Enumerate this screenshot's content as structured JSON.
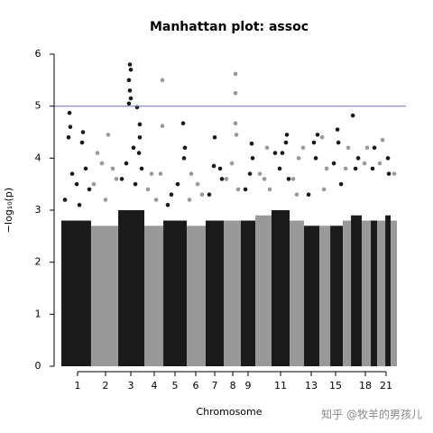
{
  "chart_data": {
    "type": "scatter",
    "title": "Manhattan plot: assoc",
    "x_label": "Chromosome",
    "y_label": "−log₁₀(p)",
    "watermark": "知乎 @牧羊的男孩儿",
    "threshold": 5,
    "threshold_color": "#7f7fd0",
    "xlim": [
      0,
      2879
    ],
    "ylim": [
      0,
      6
    ],
    "yticks": [
      0,
      1,
      2,
      3,
      4,
      5,
      6
    ],
    "xticks": [
      {
        "value": 139,
        "label": "1"
      },
      {
        "value": 379,
        "label": "2"
      },
      {
        "value": 596,
        "label": "3"
      },
      {
        "value": 797,
        "label": "4"
      },
      {
        "value": 975,
        "label": "5"
      },
      {
        "value": 1153,
        "label": "6"
      },
      {
        "value": 1316,
        "label": "7"
      },
      {
        "value": 1471,
        "label": "8"
      },
      {
        "value": 1602,
        "label": "9"
      },
      {
        "value": 1881,
        "label": "11"
      },
      {
        "value": 2144,
        "label": "13"
      },
      {
        "value": 2353,
        "label": "15"
      },
      {
        "value": 2608,
        "label": "18"
      },
      {
        "value": 2786,
        "label": "21"
      }
    ],
    "series": [
      {
        "color": "#1a1a1a",
        "range": [
          0,
          255
        ],
        "bulk": 2.8,
        "x": [
          70,
          77,
          62,
          186,
          178,
          93,
          132,
          209,
          31,
          240,
          155
        ],
        "values": [
          4.87,
          4.6,
          4.4,
          4.5,
          4.3,
          3.7,
          3.5,
          3.8,
          3.2,
          3.4,
          3.1
        ]
      },
      {
        "color": "#999999",
        "range": [
          255,
          488
        ],
        "bulk": 2.7,
        "x": [
          402,
          310,
          348,
          441,
          279,
          472,
          379
        ],
        "values": [
          4.45,
          4.1,
          3.9,
          3.8,
          3.5,
          3.6,
          3.2
        ]
      },
      {
        "color": "#1a1a1a",
        "range": [
          488,
          712
        ],
        "bulk": 3.0,
        "x": [
          588,
          596,
          580,
          588,
          596,
          580,
          650,
          673,
          673,
          619,
          666,
          557,
          689,
          519,
          635
        ],
        "values": [
          5.8,
          5.7,
          5.5,
          5.3,
          5.15,
          5.05,
          4.98,
          4.65,
          4.4,
          4.2,
          4.1,
          3.9,
          3.8,
          3.6,
          3.5
        ]
      },
      {
        "color": "#999999",
        "range": [
          712,
          875
        ],
        "bulk": 2.7,
        "x": [
          867,
          867,
          774,
          851,
          743,
          813
        ],
        "values": [
          5.5,
          4.62,
          3.7,
          3.7,
          3.4,
          3.2
        ]
      },
      {
        "color": "#1a1a1a",
        "range": [
          875,
          1076
        ],
        "bulk": 2.8,
        "x": [
          1045,
          1060,
          1053,
          944,
          998,
          913
        ],
        "values": [
          4.67,
          4.2,
          4.0,
          3.3,
          3.5,
          3.1
        ]
      },
      {
        "color": "#999999",
        "range": [
          1076,
          1238
        ],
        "bulk": 2.7,
        "x": [
          1115,
          1169,
          1207,
          1099
        ],
        "values": [
          3.7,
          3.5,
          3.3,
          3.2
        ]
      },
      {
        "color": "#1a1a1a",
        "range": [
          1238,
          1393
        ],
        "bulk": 2.8,
        "x": [
          1316,
          1308,
          1362,
          1378,
          1269
        ],
        "values": [
          4.4,
          3.85,
          3.8,
          3.6,
          3.3
        ]
      },
      {
        "color": "#999999",
        "range": [
          1393,
          1540
        ],
        "bulk": 2.8,
        "x": [
          1494,
          1494,
          1494,
          1502,
          1463,
          1416,
          1517
        ],
        "values": [
          5.62,
          5.25,
          4.67,
          4.45,
          3.9,
          3.6,
          3.4
        ]
      },
      {
        "color": "#1a1a1a",
        "range": [
          1540,
          1664
        ],
        "bulk": 2.8,
        "x": [
          1633,
          1641,
          1618,
          1579
        ],
        "values": [
          4.28,
          4.0,
          3.7,
          3.4
        ]
      },
      {
        "color": "#999999",
        "range": [
          1664,
          1803
        ],
        "bulk": 2.9,
        "x": [
          1765,
          1703,
          1742,
          1788
        ],
        "values": [
          4.2,
          3.7,
          3.6,
          3.4
        ]
      },
      {
        "color": "#1a1a1a",
        "range": [
          1803,
          1958
        ],
        "bulk": 3.0,
        "x": [
          1935,
          1927,
          1896,
          1834,
          1873,
          1950
        ],
        "values": [
          4.45,
          4.3,
          4.1,
          4.1,
          3.8,
          3.6
        ]
      },
      {
        "color": "#999999",
        "range": [
          1958,
          2082
        ],
        "bulk": 2.8,
        "x": [
          2074,
          2036,
          1989,
          2020
        ],
        "values": [
          4.2,
          4.0,
          3.6,
          3.3
        ]
      },
      {
        "color": "#1a1a1a",
        "range": [
          2082,
          2214
        ],
        "bulk": 2.7,
        "x": [
          2198,
          2167,
          2183,
          2121
        ],
        "values": [
          4.45,
          4.3,
          4.0,
          3.3
        ]
      },
      {
        "color": "#999999",
        "range": [
          2214,
          2307
        ],
        "bulk": 2.7,
        "x": [
          2237,
          2276,
          2253
        ],
        "values": [
          4.4,
          3.8,
          3.4
        ]
      },
      {
        "color": "#1a1a1a",
        "range": [
          2307,
          2415
        ],
        "bulk": 2.7,
        "x": [
          2369,
          2377,
          2338,
          2400
        ],
        "values": [
          4.55,
          4.3,
          3.9,
          3.5
        ]
      },
      {
        "color": "#999999",
        "range": [
          2415,
          2485
        ],
        "bulk": 2.8,
        "x": [
          2462,
          2439
        ],
        "values": [
          4.2,
          3.8
        ]
      },
      {
        "color": "#1a1a1a",
        "range": [
          2485,
          2577
        ],
        "bulk": 2.9,
        "x": [
          2501,
          2547,
          2524
        ],
        "values": [
          4.82,
          4.0,
          3.8
        ]
      },
      {
        "color": "#999999",
        "range": [
          2577,
          2655
        ],
        "bulk": 2.8,
        "x": [
          2624,
          2601
        ],
        "values": [
          4.2,
          3.9
        ]
      },
      {
        "color": "#1a1a1a",
        "range": [
          2655,
          2709
        ],
        "bulk": 2.8,
        "x": [
          2686,
          2670
        ],
        "values": [
          4.2,
          3.8
        ]
      },
      {
        "color": "#999999",
        "range": [
          2709,
          2779
        ],
        "bulk": 2.8,
        "x": [
          2756,
          2732
        ],
        "values": [
          4.35,
          3.9
        ]
      },
      {
        "color": "#1a1a1a",
        "range": [
          2779,
          2825
        ],
        "bulk": 2.9,
        "x": [
          2802,
          2810
        ],
        "values": [
          4.0,
          3.7
        ]
      },
      {
        "color": "#999999",
        "range": [
          2825,
          2879
        ],
        "bulk": 2.8,
        "x": [
          2856
        ],
        "values": [
          3.7
        ]
      }
    ]
  }
}
